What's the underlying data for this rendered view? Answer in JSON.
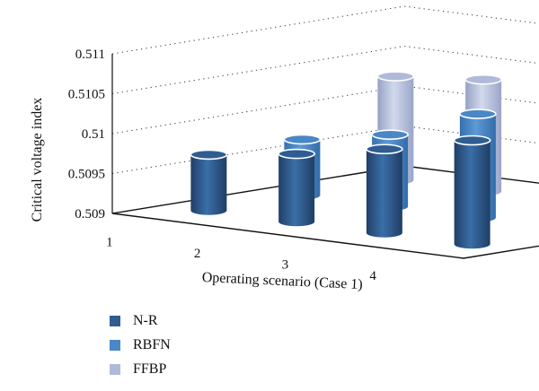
{
  "chart_data": {
    "type": "bar",
    "subtype": "3d-cylinder",
    "title": "",
    "xlabel": "Operating scenario (Case 1)",
    "ylabel": "Critical voltage index",
    "categories": [
      "1",
      "2",
      "3",
      "4"
    ],
    "ylim": [
      0.509,
      0.511
    ],
    "yticks": [
      "0.509",
      "0.5095",
      "0.51",
      "0.5105",
      "0.511"
    ],
    "grid": true,
    "legend_position": "bottom-left",
    "series": [
      {
        "name": "N-R",
        "color": "#2f5d92",
        "values": [
          0.5097,
          0.50985,
          0.51005,
          0.5103
        ]
      },
      {
        "name": "RBFN",
        "color": "#4a87c6",
        "values": [
          0.5097,
          0.5099,
          0.5103,
          0.5105
        ]
      },
      {
        "name": "FFBP",
        "color": "#b0bad8",
        "values": [
          0.5103,
          0.5104,
          0.5106,
          0.5108
        ]
      }
    ]
  }
}
